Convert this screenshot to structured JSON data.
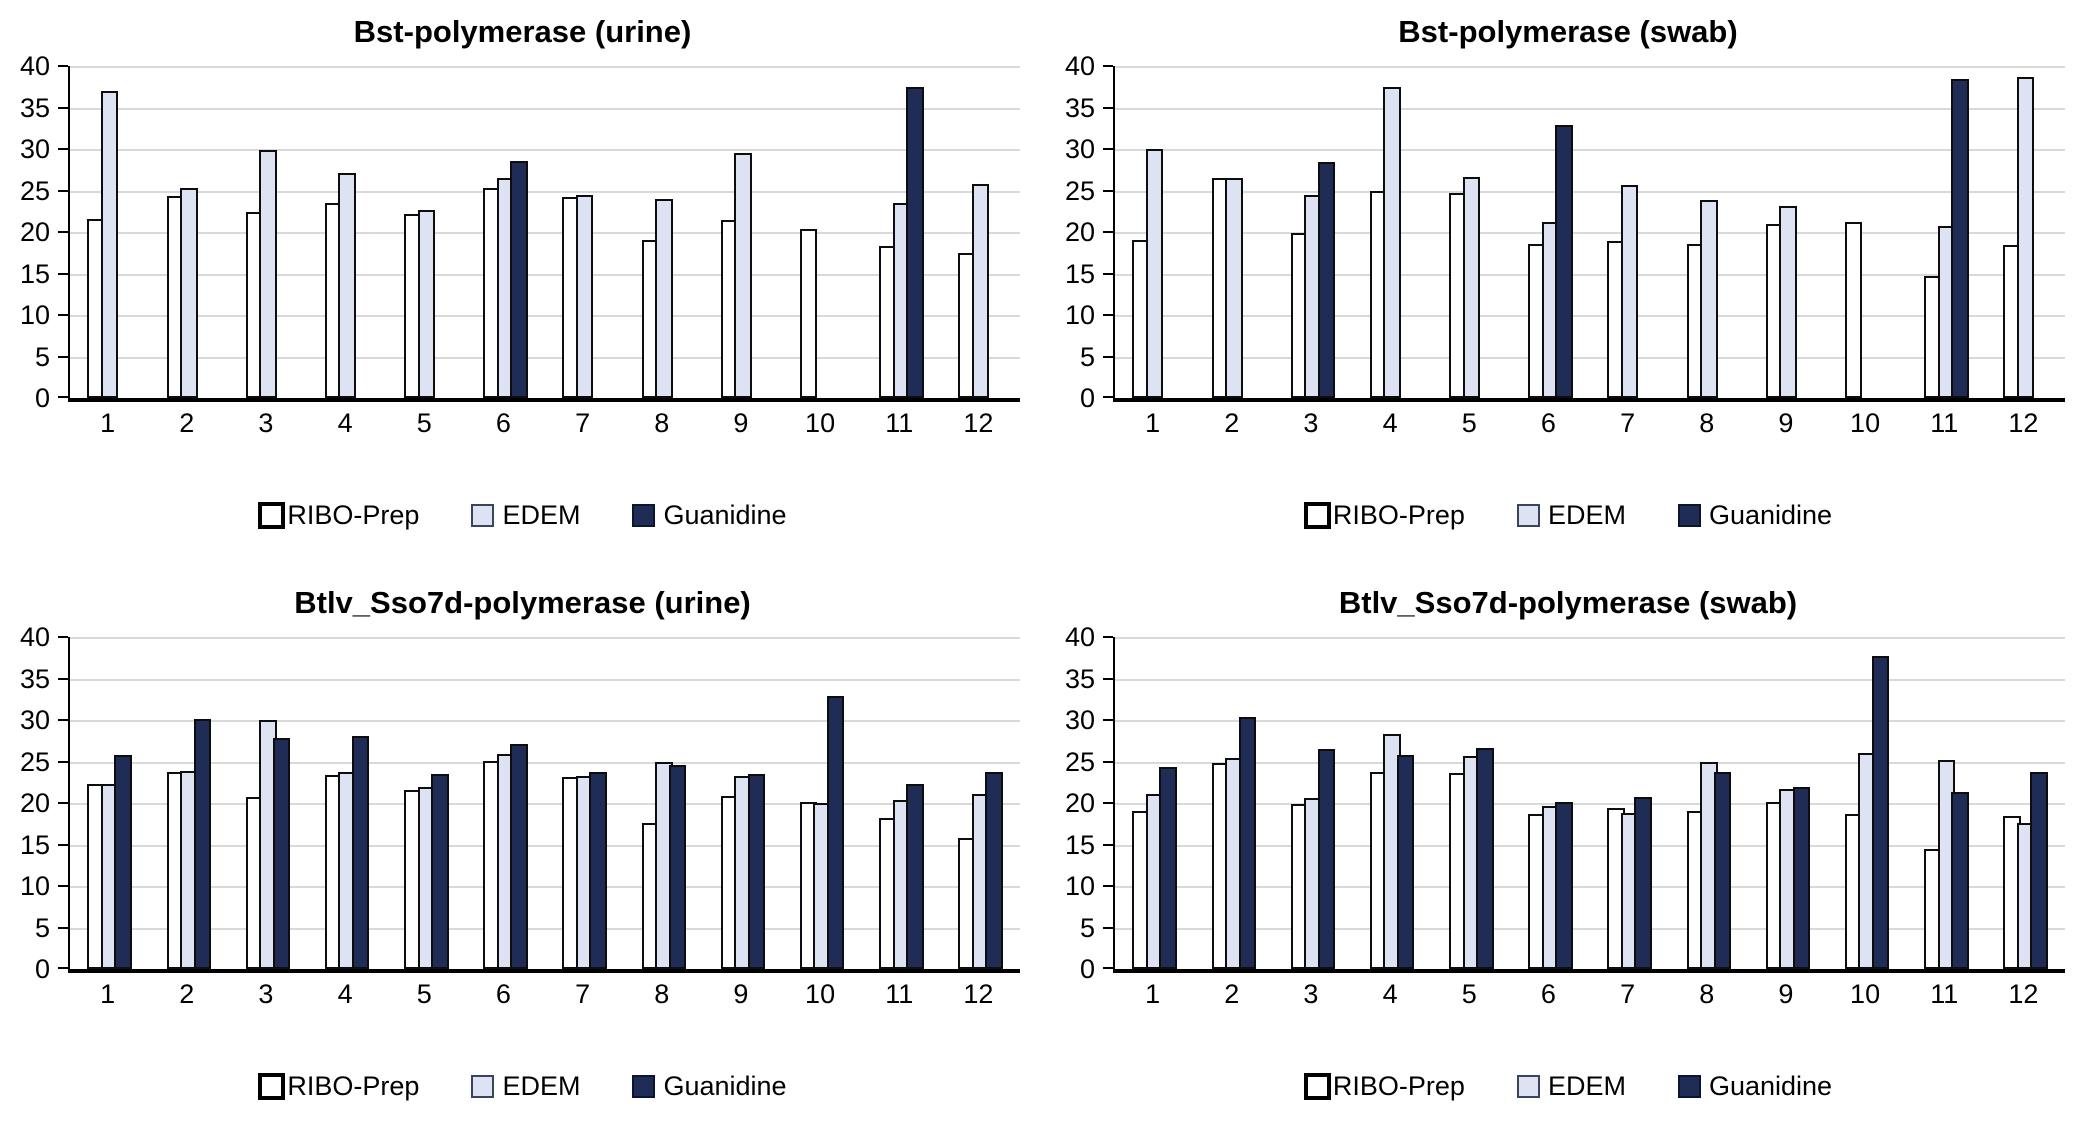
{
  "page": {
    "background": "#ffffff"
  },
  "style_colors": {
    "gridline": "#d9d9d9",
    "axis": "#000000",
    "bar_border": "#0d0d0d",
    "text": "#000000"
  },
  "legend": {
    "labels": [
      "RIBO-Prep",
      "EDEM",
      "Guanidine"
    ]
  },
  "chart_data": [
    {
      "type": "bar",
      "title": "Bst-polymerase (urine)",
      "categories": [
        "1",
        "2",
        "3",
        "4",
        "5",
        "6",
        "7",
        "8",
        "9",
        "10",
        "11",
        "12"
      ],
      "ylim": [
        0,
        40
      ],
      "ytick_step": 5,
      "grid": true,
      "legend_position": "bottom",
      "series": [
        {
          "name": "RIBO-Prep",
          "fill": "#ffffff",
          "swatch_border": "4px solid #000000",
          "values": [
            21.1,
            23.8,
            21.9,
            23.0,
            21.7,
            24.8,
            23.7,
            18.6,
            21.0,
            19.9,
            17.8,
            17.0
          ]
        },
        {
          "name": "EDEM",
          "fill": "#dde3f2",
          "swatch_border": "2px solid #39455e",
          "values": [
            36.5,
            24.8,
            29.4,
            26.6,
            22.2,
            26.0,
            24.0,
            23.5,
            29.0,
            0,
            23.0,
            25.3
          ]
        },
        {
          "name": "Guanidine",
          "fill": "#1f2c55",
          "swatch_border": "2px solid #0b1530",
          "values": [
            0,
            0,
            0,
            0,
            0,
            28.1,
            0,
            0,
            0,
            0,
            37.0,
            0
          ]
        }
      ]
    },
    {
      "type": "bar",
      "title": "Bst-polymerase (swab)",
      "categories": [
        "1",
        "2",
        "3",
        "4",
        "5",
        "6",
        "7",
        "8",
        "9",
        "10",
        "11",
        "12"
      ],
      "ylim": [
        0,
        40
      ],
      "ytick_step": 5,
      "grid": true,
      "legend_position": "bottom",
      "series": [
        {
          "name": "RIBO-Prep",
          "fill": "#ffffff",
          "swatch_border": "4px solid #000000",
          "values": [
            18.5,
            26.0,
            19.4,
            24.5,
            24.2,
            18.1,
            18.4,
            18.1,
            20.5,
            20.7,
            14.2,
            18.0
          ]
        },
        {
          "name": "EDEM",
          "fill": "#dde3f2",
          "swatch_border": "2px solid #39455e",
          "values": [
            29.5,
            26.0,
            24.0,
            37.0,
            26.1,
            20.7,
            25.2,
            23.4,
            22.6,
            0,
            20.3,
            38.2
          ]
        },
        {
          "name": "Guanidine",
          "fill": "#1f2c55",
          "swatch_border": "2px solid #0b1530",
          "values": [
            0,
            0,
            28.0,
            0,
            0,
            32.4,
            0,
            0,
            0,
            0,
            38.0,
            0
          ]
        }
      ]
    },
    {
      "type": "bar",
      "title": "Btlv_Sso7d-polymerase (urine)",
      "categories": [
        "1",
        "2",
        "3",
        "4",
        "5",
        "6",
        "7",
        "8",
        "9",
        "10",
        "11",
        "12"
      ],
      "ylim": [
        0,
        40
      ],
      "ytick_step": 5,
      "grid": true,
      "legend_position": "bottom",
      "series": [
        {
          "name": "RIBO-Prep",
          "fill": "#ffffff",
          "swatch_border": "4px solid #000000",
          "values": [
            21.8,
            23.3,
            20.3,
            22.9,
            21.1,
            24.6,
            22.7,
            17.1,
            20.4,
            19.6,
            17.7,
            15.3
          ]
        },
        {
          "name": "EDEM",
          "fill": "#dde3f2",
          "swatch_border": "2px solid #39455e",
          "values": [
            21.8,
            23.4,
            29.5,
            23.2,
            21.5,
            25.4,
            22.8,
            24.5,
            22.8,
            19.5,
            19.9,
            20.6
          ]
        },
        {
          "name": "Guanidine",
          "fill": "#1f2c55",
          "swatch_border": "2px solid #0b1530",
          "values": [
            25.3,
            29.6,
            27.3,
            27.6,
            23.0,
            26.6,
            23.3,
            24.1,
            23.0,
            32.4,
            21.8,
            23.2
          ]
        }
      ]
    },
    {
      "type": "bar",
      "title": "Btlv_Sso7d-polymerase (swab)",
      "categories": [
        "1",
        "2",
        "3",
        "4",
        "5",
        "6",
        "7",
        "8",
        "9",
        "10",
        "11",
        "12"
      ],
      "ylim": [
        0,
        40
      ],
      "ytick_step": 5,
      "grid": true,
      "legend_position": "bottom",
      "series": [
        {
          "name": "RIBO-Prep",
          "fill": "#ffffff",
          "swatch_border": "4px solid #000000",
          "values": [
            18.6,
            24.3,
            19.4,
            23.3,
            23.1,
            18.2,
            18.9,
            18.6,
            19.6,
            18.2,
            14.0,
            18.0
          ]
        },
        {
          "name": "EDEM",
          "fill": "#dde3f2",
          "swatch_border": "2px solid #39455e",
          "values": [
            20.6,
            24.9,
            20.1,
            27.8,
            25.2,
            19.1,
            18.3,
            24.4,
            21.2,
            25.6,
            24.7,
            17.1
          ]
        },
        {
          "name": "Guanidine",
          "fill": "#1f2c55",
          "swatch_border": "2px solid #0b1530",
          "values": [
            23.8,
            29.9,
            26.0,
            25.3,
            26.1,
            19.6,
            20.2,
            23.2,
            21.5,
            37.2,
            20.9,
            23.2
          ]
        }
      ]
    }
  ]
}
